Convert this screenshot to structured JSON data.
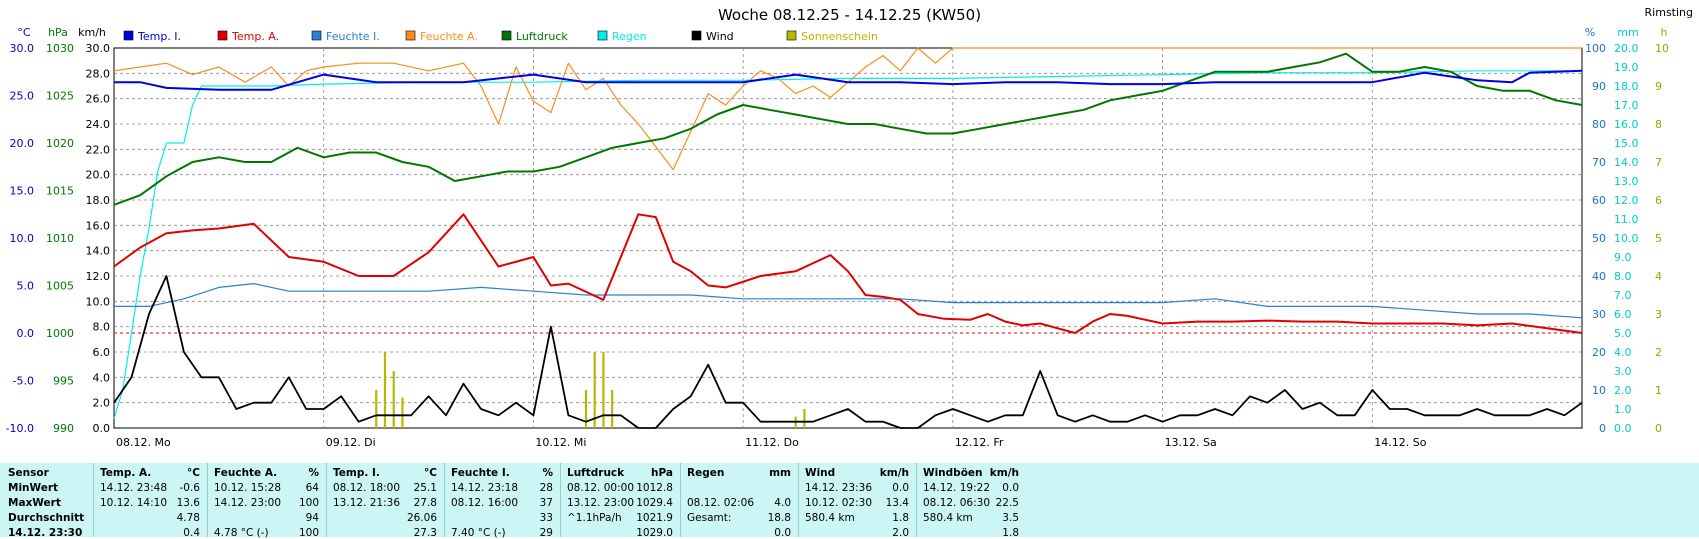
{
  "title": "Woche 08.12.25 - 14.12.25 (KW50)",
  "station": "Rimsting",
  "colors": {
    "temp_i": "#0000e0",
    "temp_a": "#e00000",
    "feuchte_i": "#2a7fd6",
    "feuchte_a": "#ff8c1a",
    "luftdruck": "#007700",
    "regen": "#00eeee",
    "wind": "#000000",
    "sonnenschein": "#b8b800",
    "grid": "#888888",
    "zero_line": "#e00000"
  },
  "chart_data": {
    "type": "line",
    "x_ticks": [
      "08.12. Mo",
      "09.12. Di",
      "10.12. Mi",
      "11.12. Do",
      "12.12. Fr",
      "13.12. Sa",
      "14.12. So"
    ],
    "x_range_hours": [
      0,
      168
    ],
    "axes": {
      "temp": {
        "unit": "°C",
        "ticks": [
          "30.0",
          "25.0",
          "20.0",
          "15.0",
          "10.0",
          "5.0",
          "0.0",
          "-5.0",
          "-10.0"
        ],
        "range": [
          -10,
          30
        ]
      },
      "pressure": {
        "unit": "hPa",
        "ticks": [
          "1030",
          "1025",
          "1020",
          "1015",
          "1010",
          "1005",
          "1000",
          "995",
          "990"
        ],
        "range": [
          990,
          1030
        ]
      },
      "wind": {
        "unit": "km/h",
        "ticks": [
          "30.0",
          "28.0",
          "26.0",
          "24.0",
          "22.0",
          "20.0",
          "18.0",
          "16.0",
          "14.0",
          "12.0",
          "10.0",
          "8.0",
          "6.0",
          "4.0",
          "2.0",
          "0.0"
        ],
        "range": [
          0,
          30
        ]
      },
      "humidity": {
        "unit": "%",
        "ticks": [
          "100",
          "90",
          "80",
          "70",
          "60",
          "50",
          "40",
          "30",
          "20",
          "10",
          "0"
        ],
        "range": [
          0,
          100
        ]
      },
      "rain": {
        "unit": "mm",
        "ticks": [
          "20.0",
          "19.0",
          "18.0",
          "17.0",
          "16.0",
          "15.0",
          "14.0",
          "13.0",
          "12.0",
          "11.0",
          "10.0",
          "9.0",
          "8.0",
          "7.0",
          "6.0",
          "5.0",
          "4.0",
          "3.0",
          "2.0",
          "1.0",
          "0.0"
        ],
        "range": [
          0,
          20
        ]
      },
      "sun": {
        "unit": "h",
        "ticks": [
          "10",
          "9",
          "8",
          "7",
          "6",
          "5",
          "4",
          "3",
          "2",
          "1",
          "0"
        ],
        "range": [
          0,
          10
        ]
      }
    },
    "legend": [
      "Temp. I.",
      "Temp. A.",
      "Feuchte I.",
      "Feuchte A.",
      "Luftdruck",
      "Regen",
      "Wind",
      "Sonnenschein"
    ],
    "series": [
      {
        "name": "Temp. I.",
        "axis": "temp",
        "x": [
          0,
          3,
          6,
          12,
          18,
          24,
          30,
          36,
          40,
          48,
          54,
          60,
          66,
          72,
          78,
          84,
          90,
          96,
          102,
          108,
          114,
          120,
          126,
          132,
          138,
          144,
          150,
          156,
          160,
          162,
          168
        ],
        "y": [
          26.4,
          26.4,
          25.8,
          25.6,
          25.6,
          27.2,
          26.4,
          26.4,
          26.4,
          27.2,
          26.4,
          26.4,
          26.4,
          26.4,
          27.2,
          26.4,
          26.4,
          26.2,
          26.4,
          26.4,
          26.2,
          26.2,
          26.4,
          26.4,
          26.4,
          26.4,
          27.4,
          26.6,
          26.4,
          27.4,
          27.6
        ]
      },
      {
        "name": "Temp. A.",
        "axis": "temp",
        "x": [
          0,
          3,
          6,
          9,
          12,
          16,
          20,
          24,
          28,
          32,
          36,
          40,
          44,
          48,
          50,
          52,
          56,
          60,
          62,
          64,
          66,
          68,
          70,
          74,
          78,
          82,
          84,
          86,
          88,
          90,
          92,
          95,
          98,
          100,
          102,
          104,
          106,
          108,
          110,
          112,
          114,
          116,
          120,
          124,
          128,
          132,
          136,
          140,
          144,
          148,
          152,
          156,
          160,
          164,
          168
        ],
        "y": [
          7.0,
          9.0,
          10.5,
          10.8,
          11.0,
          11.5,
          8.0,
          7.5,
          6.0,
          6.0,
          8.5,
          12.5,
          7.0,
          8.0,
          5.0,
          5.2,
          3.5,
          12.5,
          12.2,
          7.5,
          6.5,
          5.0,
          4.8,
          6.0,
          6.5,
          8.2,
          6.5,
          4.0,
          3.8,
          3.5,
          2.0,
          1.5,
          1.4,
          2.0,
          1.2,
          0.8,
          1.0,
          0.5,
          0.0,
          1.2,
          2.0,
          1.8,
          1.0,
          1.2,
          1.2,
          1.3,
          1.2,
          1.2,
          1.0,
          1.0,
          1.0,
          0.8,
          1.0,
          0.5,
          0.0
        ]
      },
      {
        "name": "Feuchte I.",
        "axis": "humidity",
        "x": [
          0,
          4,
          8,
          12,
          16,
          20,
          24,
          30,
          36,
          42,
          48,
          54,
          60,
          66,
          72,
          78,
          84,
          90,
          96,
          102,
          108,
          114,
          120,
          126,
          132,
          138,
          144,
          150,
          156,
          162,
          168
        ],
        "y": [
          32,
          32,
          34,
          37,
          38,
          36,
          36,
          36,
          36,
          37,
          36,
          35,
          35,
          35,
          34,
          34,
          34,
          34,
          33,
          33,
          33,
          33,
          33,
          34,
          32,
          32,
          32,
          31,
          30,
          30,
          29
        ]
      },
      {
        "name": "Feuchte A.",
        "axis": "humidity",
        "x": [
          0,
          3,
          6,
          9,
          12,
          15,
          18,
          20,
          22,
          24,
          28,
          32,
          36,
          40,
          42,
          44,
          46,
          48,
          50,
          52,
          54,
          56,
          58,
          60,
          62,
          64,
          66,
          68,
          70,
          72,
          74,
          76,
          78,
          80,
          82,
          84,
          86,
          88,
          90,
          92,
          94,
          96,
          98,
          100,
          102,
          104,
          106,
          108,
          112,
          120,
          132,
          144,
          168
        ],
        "y": [
          94,
          95,
          96,
          93,
          95,
          91,
          95,
          90,
          94,
          95,
          96,
          96,
          94,
          96,
          90,
          80,
          95,
          86,
          83,
          96,
          89,
          92,
          85,
          80,
          74,
          68,
          78,
          88,
          85,
          90,
          94,
          92,
          88,
          90,
          87,
          91,
          95,
          98,
          94,
          100,
          96,
          100,
          100,
          100,
          100,
          100,
          100,
          100,
          100,
          100,
          100,
          100,
          100
        ]
      },
      {
        "name": "Luftdruck",
        "axis": "pressure",
        "x": [
          0,
          3,
          6,
          9,
          12,
          15,
          18,
          21,
          24,
          27,
          30,
          33,
          36,
          39,
          42,
          45,
          48,
          51,
          54,
          57,
          60,
          63,
          66,
          69,
          72,
          75,
          78,
          81,
          84,
          87,
          90,
          93,
          96,
          99,
          102,
          105,
          108,
          111,
          114,
          117,
          120,
          123,
          126,
          129,
          132,
          135,
          138,
          141,
          144,
          147,
          150,
          153,
          156,
          159,
          162,
          165,
          168
        ],
        "y": [
          1013.5,
          1014.5,
          1016.5,
          1018,
          1018.5,
          1018,
          1018,
          1019.5,
          1018.5,
          1019,
          1019,
          1018,
          1017.5,
          1016,
          1016.5,
          1017,
          1017,
          1017.5,
          1018.5,
          1019.5,
          1020,
          1020.5,
          1021.5,
          1023,
          1024,
          1023.5,
          1023,
          1022.5,
          1022,
          1022,
          1021.5,
          1021,
          1021,
          1021.5,
          1022,
          1022.5,
          1023,
          1023.5,
          1024.5,
          1025,
          1025.5,
          1026.5,
          1027.5,
          1027.5,
          1027.5,
          1028,
          1028.5,
          1029.4,
          1027.5,
          1027.5,
          1028,
          1027.5,
          1026,
          1025.5,
          1025.5,
          1024.5,
          1024
        ]
      },
      {
        "name": "Regen",
        "axis": "rain",
        "x": [
          0,
          1,
          2,
          3,
          4,
          5,
          6,
          7,
          8,
          9,
          10,
          11,
          12,
          18,
          24,
          36,
          48,
          60,
          72,
          84,
          96,
          108,
          120,
          132,
          144,
          156,
          168
        ],
        "y": [
          0.5,
          2.0,
          5.0,
          8.0,
          10.5,
          13.5,
          15.0,
          15.0,
          15.0,
          17.0,
          18.0,
          18.0,
          18.0,
          18.0,
          18.1,
          18.2,
          18.2,
          18.3,
          18.3,
          18.4,
          18.4,
          18.5,
          18.6,
          18.7,
          18.7,
          18.8,
          18.8
        ]
      },
      {
        "name": "Wind",
        "axis": "wind",
        "x": [
          0,
          2,
          4,
          6,
          8,
          10,
          12,
          14,
          16,
          18,
          20,
          22,
          24,
          26,
          28,
          30,
          32,
          34,
          36,
          38,
          40,
          42,
          44,
          46,
          48,
          50,
          52,
          54,
          56,
          58,
          60,
          62,
          64,
          66,
          68,
          70,
          72,
          74,
          76,
          78,
          80,
          82,
          84,
          86,
          88,
          90,
          92,
          94,
          96,
          98,
          100,
          102,
          104,
          106,
          108,
          110,
          112,
          114,
          116,
          118,
          120,
          122,
          124,
          126,
          128,
          130,
          132,
          134,
          136,
          138,
          140,
          142,
          144,
          146,
          148,
          150,
          152,
          154,
          156,
          158,
          160,
          162,
          164,
          166,
          168
        ],
        "y": [
          2.0,
          4.0,
          9.0,
          12.0,
          6.0,
          4.0,
          4.0,
          1.5,
          2.0,
          2.0,
          4.0,
          1.5,
          1.5,
          2.5,
          0.5,
          1.0,
          1.0,
          1.0,
          2.5,
          1.0,
          3.5,
          1.5,
          1.0,
          2.0,
          1.0,
          8.0,
          1.0,
          0.5,
          1.0,
          1.0,
          0.0,
          0.0,
          1.5,
          2.5,
          5.0,
          2.0,
          2.0,
          0.5,
          0.5,
          0.5,
          0.5,
          1.0,
          1.5,
          0.5,
          0.5,
          0.0,
          0.0,
          1.0,
          1.5,
          1.0,
          0.5,
          1.0,
          1.0,
          4.5,
          1.0,
          0.5,
          1.0,
          0.5,
          0.5,
          1.0,
          0.5,
          1.0,
          1.0,
          1.5,
          1.0,
          2.5,
          2.0,
          3.0,
          1.5,
          2.0,
          1.0,
          1.0,
          3.0,
          1.5,
          1.5,
          1.0,
          1.0,
          1.0,
          1.5,
          1.0,
          1.0,
          1.0,
          1.5,
          1.0,
          2.0
        ]
      },
      {
        "name": "Sonnenschein",
        "type": "bar",
        "axis": "sun",
        "x": [
          30,
          31,
          32,
          33,
          54,
          55,
          56,
          57,
          78,
          79
        ],
        "y": [
          1.0,
          2.0,
          1.5,
          0.8,
          1.0,
          2.0,
          2.0,
          1.0,
          0.3,
          0.5
        ]
      }
    ]
  },
  "table": {
    "row_labels": [
      "Sensor",
      "MinWert",
      "MaxWert",
      "Durchschnitt",
      "14.12. 23:30"
    ],
    "blocks": [
      {
        "head": [
          "Temp. A.",
          "°C"
        ],
        "rows": [
          [
            "14.12. 23:48",
            "-0.6"
          ],
          [
            "10.12. 14:10",
            "13.6"
          ],
          [
            "",
            "4.78"
          ],
          [
            "",
            "0.4"
          ]
        ]
      },
      {
        "head": [
          "Feuchte A.",
          "%"
        ],
        "rows": [
          [
            "10.12. 15:28",
            "64"
          ],
          [
            "14.12. 23:00",
            "100"
          ],
          [
            "",
            "94"
          ],
          [
            "4.78 °C (-)",
            "100"
          ]
        ]
      },
      {
        "head": [
          "Temp. I.",
          "°C"
        ],
        "rows": [
          [
            "08.12. 18:00",
            "25.1"
          ],
          [
            "13.12. 21:36",
            "27.8"
          ],
          [
            "",
            "26.06"
          ],
          [
            "",
            "27.3"
          ]
        ]
      },
      {
        "head": [
          "Feuchte I.",
          "%"
        ],
        "rows": [
          [
            "14.12. 23:18",
            "28"
          ],
          [
            "08.12. 16:00",
            "37"
          ],
          [
            "",
            "33"
          ],
          [
            "7.40 °C (-)",
            "29"
          ]
        ]
      },
      {
        "head": [
          "Luftdruck",
          "hPa"
        ],
        "rows": [
          [
            "08.12. 00:00",
            "1012.8"
          ],
          [
            "13.12. 23:00",
            "1029.4"
          ],
          [
            "^1.1hPa/h",
            "1021.9"
          ],
          [
            "",
            "1029.0"
          ]
        ]
      },
      {
        "head": [
          "Regen",
          "mm"
        ],
        "rows": [
          [
            "",
            ""
          ],
          [
            "08.12. 02:06",
            "4.0"
          ],
          [
            "Gesamt:",
            "18.8"
          ],
          [
            "",
            "0.0"
          ]
        ]
      },
      {
        "head": [
          "Wind",
          "km/h"
        ],
        "rows": [
          [
            "14.12. 23:36",
            "0.0"
          ],
          [
            "10.12. 02:30",
            "13.4"
          ],
          [
            "580.4 km",
            "1.8"
          ],
          [
            "",
            "2.0"
          ]
        ]
      },
      {
        "head": [
          "Windböen",
          "km/h"
        ],
        "rows": [
          [
            "14.12. 19:22",
            "0.0"
          ],
          [
            "08.12. 06:30",
            "22.5"
          ],
          [
            "580.4 km",
            "3.5"
          ],
          [
            "",
            "1.8"
          ]
        ]
      }
    ]
  }
}
